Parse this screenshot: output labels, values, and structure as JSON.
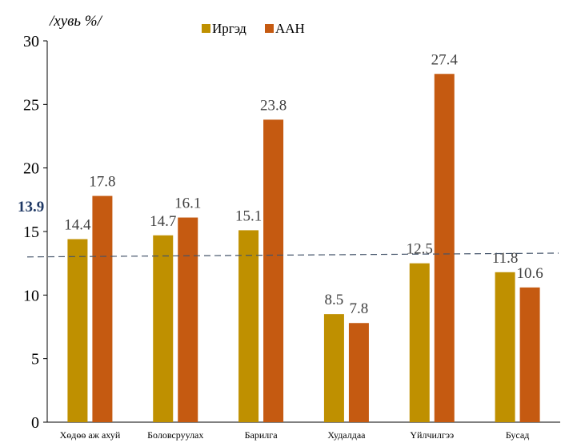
{
  "chart_data": {
    "type": "bar",
    "unit_label": "/хувь %/",
    "categories": [
      "Хөдөө аж ахуй",
      "Боловсруулах",
      "Барилга",
      "Худалдаа",
      "Үйлчилгээ",
      "Бусад"
    ],
    "series": [
      {
        "name": "Иргэд",
        "color": "#bf9000",
        "values": [
          14.4,
          14.7,
          15.1,
          8.5,
          12.5,
          11.8
        ]
      },
      {
        "name": "ААН",
        "color": "#c55a11",
        "values": [
          17.8,
          16.1,
          23.8,
          7.8,
          27.4,
          10.6
        ]
      }
    ],
    "ylim": [
      0,
      30
    ],
    "yticks": [
      0,
      5,
      10,
      15,
      20,
      25,
      30
    ],
    "grid": false,
    "legend_position": "top-center",
    "reference_line": {
      "label": "13.9",
      "style": "dashed",
      "color": "#44546a",
      "y_start": 13.0,
      "y_end": 13.3
    }
  }
}
